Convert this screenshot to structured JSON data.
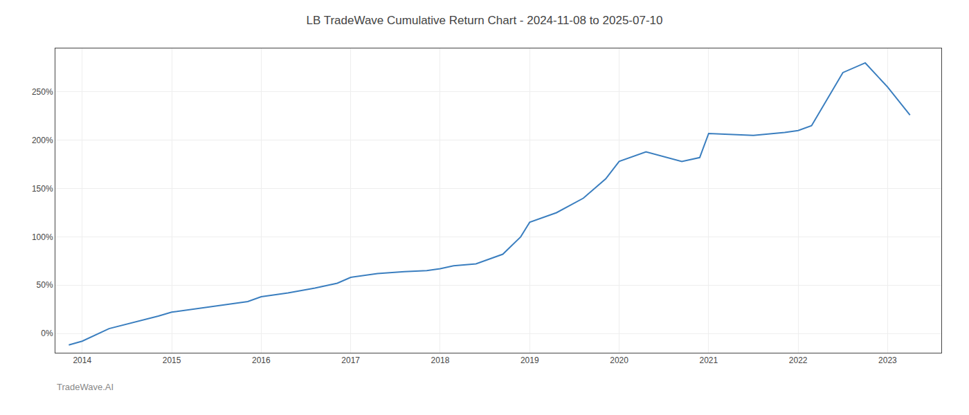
{
  "chart_data": {
    "type": "line",
    "title": "LB TradeWave Cumulative Return Chart - 2024-11-08 to 2025-07-10",
    "annotations": [
      {
        "text": "TradeWave.AI"
      }
    ],
    "x": [
      2013.85,
      2014.0,
      2014.3,
      2014.6,
      2014.85,
      2015.0,
      2015.3,
      2015.6,
      2015.85,
      2016.0,
      2016.3,
      2016.6,
      2016.85,
      2017.0,
      2017.3,
      2017.6,
      2017.85,
      2018.0,
      2018.15,
      2018.4,
      2018.7,
      2018.9,
      2019.0,
      2019.3,
      2019.6,
      2019.85,
      2020.0,
      2020.3,
      2020.7,
      2020.9,
      2021.0,
      2021.5,
      2021.85,
      2022.0,
      2022.15,
      2022.5,
      2022.75,
      2023.0,
      2023.25
    ],
    "values": [
      -12,
      -8,
      5,
      12,
      18,
      22,
      26,
      30,
      33,
      38,
      42,
      47,
      52,
      58,
      62,
      64,
      65,
      67,
      70,
      72,
      82,
      100,
      115,
      125,
      140,
      160,
      178,
      188,
      178,
      182,
      207,
      205,
      208,
      210,
      215,
      270,
      280,
      255,
      226
    ],
    "color": "#3a7ebf",
    "xlim": [
      2013.7,
      2023.6
    ],
    "ylim": [
      -20,
      295
    ],
    "xticks": [
      2014,
      2015,
      2016,
      2017,
      2018,
      2019,
      2020,
      2021,
      2022,
      2023
    ],
    "yticks": [
      {
        "value": 0,
        "label": "0%"
      },
      {
        "value": 50,
        "label": "50%"
      },
      {
        "value": 100,
        "label": "100%"
      },
      {
        "value": 150,
        "label": "150%"
      },
      {
        "value": 200,
        "label": "200%"
      },
      {
        "value": 250,
        "label": "250%"
      }
    ],
    "grid": true
  }
}
